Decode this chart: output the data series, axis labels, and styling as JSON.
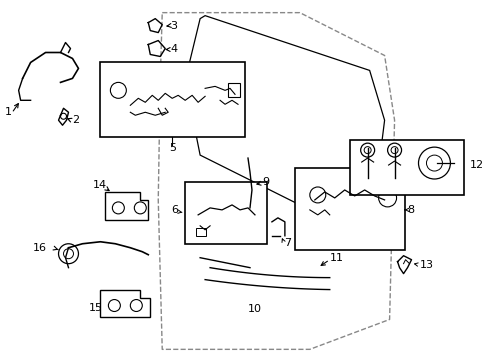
{
  "background_color": "#ffffff",
  "line_color": "#000000",
  "door_outline": {
    "points": [
      [
        0.3,
        0.97
      ],
      [
        0.52,
        0.97
      ],
      [
        0.75,
        0.82
      ],
      [
        0.78,
        0.6
      ],
      [
        0.75,
        0.15
      ],
      [
        0.3,
        0.08
      ],
      [
        0.24,
        0.3
      ],
      [
        0.26,
        0.68
      ]
    ],
    "style": "--"
  },
  "window_outline": {
    "points": [
      [
        0.32,
        0.69
      ],
      [
        0.35,
        0.88
      ],
      [
        0.65,
        0.85
      ],
      [
        0.72,
        0.67
      ],
      [
        0.65,
        0.52
      ],
      [
        0.4,
        0.52
      ]
    ],
    "style": "-"
  }
}
